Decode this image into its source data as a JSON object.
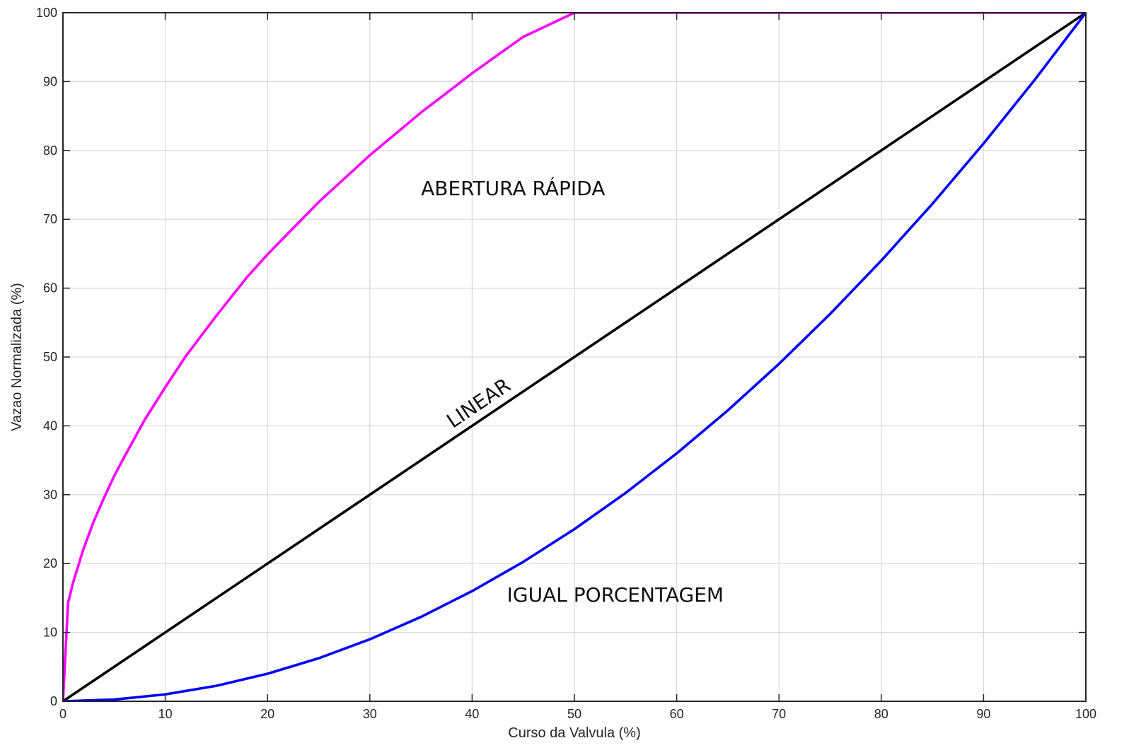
{
  "chart_data": {
    "type": "line",
    "title": "",
    "xlabel": "Curso da Valvula (%)",
    "ylabel": "Vazao Normalizada (%)",
    "xlim": [
      0,
      100
    ],
    "ylim": [
      0,
      100
    ],
    "x_ticks": [
      "0",
      "10",
      "20",
      "30",
      "40",
      "50",
      "60",
      "70",
      "80",
      "90",
      "100"
    ],
    "y_ticks": [
      "0",
      "10",
      "20",
      "30",
      "40",
      "50",
      "60",
      "70",
      "80",
      "90",
      "100"
    ],
    "grid": true,
    "legend": "none",
    "series": [
      {
        "color": "#ff00ff",
        "x": [
          0,
          0.5,
          1,
          2,
          3,
          4,
          5,
          6,
          8,
          10,
          12,
          15,
          18,
          20,
          25,
          30,
          35,
          40,
          45,
          50,
          55,
          60,
          63.8,
          70,
          80,
          90,
          100
        ],
        "y": [
          0,
          14.3,
          17.3,
          22.1,
          26.1,
          29.5,
          32.7,
          35.5,
          40.9,
          45.6,
          50.1,
          56,
          61.6,
          64.9,
          72.5,
          79.3,
          85.5,
          91.2,
          96.5,
          101.4,
          106,
          110.3,
          100,
          100,
          100,
          100,
          100
        ]
      },
      {
        "color": "#000000",
        "x": [
          0,
          100
        ],
        "y": [
          0,
          100
        ]
      },
      {
        "color": "#0000ff",
        "x": [
          0,
          5,
          10,
          15,
          20,
          25,
          30,
          35,
          40,
          45,
          50,
          55,
          60,
          65,
          70,
          75,
          80,
          85,
          90,
          95,
          100
        ],
        "y": [
          0,
          0.25,
          1,
          2.25,
          4,
          6.25,
          9,
          12.25,
          16,
          20.25,
          25,
          30.25,
          36,
          42.25,
          49,
          56.25,
          64,
          72.25,
          81,
          90.25,
          100
        ]
      }
    ],
    "annotations": [
      {
        "text": "ABERTURA RÁPIDA",
        "x": 44,
        "y": 73.5,
        "rotation": 0
      },
      {
        "text": "LINEAR",
        "x": 41,
        "y": 42.5,
        "rotation": -34
      },
      {
        "text": "IGUAL PORCENTAGEM",
        "x": 54,
        "y": 14.5,
        "rotation": 0
      }
    ]
  }
}
